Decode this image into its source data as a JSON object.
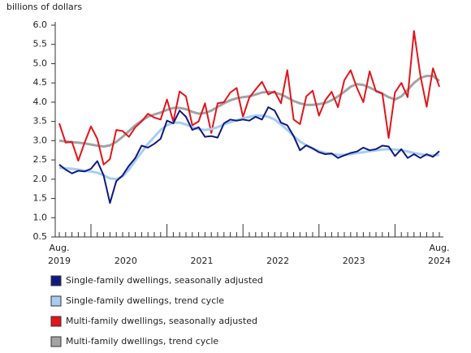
{
  "chart_data": {
    "type": "line",
    "y_label": "billions of dollars",
    "categories": [
      "Aug. 2019",
      null,
      null,
      null,
      null,
      null,
      null,
      null,
      null,
      null,
      null,
      null,
      null,
      null,
      null,
      null,
      null,
      null,
      null,
      null,
      null,
      null,
      null,
      null,
      null,
      null,
      null,
      null,
      null,
      null,
      null,
      null,
      null,
      null,
      null,
      null,
      null,
      null,
      null,
      null,
      null,
      null,
      null,
      null,
      null,
      null,
      null,
      null,
      null,
      null,
      null,
      null,
      null,
      null,
      null,
      null,
      null,
      null,
      null,
      null,
      "Aug. 2024"
    ],
    "year_labels": [
      "2020",
      "2021",
      "2022",
      "2023"
    ],
    "ylim": [
      0.5,
      6.0
    ],
    "yticks": [
      0.5,
      {
        "value": 1,
        "label": "1.0"
      },
      1.5,
      {
        "value": 2,
        "label": "2.0"
      },
      2.5,
      {
        "value": 3,
        "label": "3.0"
      },
      3.5,
      {
        "value": 4,
        "label": "4.0"
      },
      4.5,
      {
        "value": 5,
        "label": "5.0"
      },
      5.5,
      {
        "value": 6,
        "label": "6.0"
      }
    ],
    "grid": false,
    "series": [
      {
        "name": "Single-family dwellings, seasonally adjusted",
        "color": "#0f1a80",
        "values": [
          2.38,
          2.25,
          2.15,
          2.22,
          2.2,
          2.27,
          2.47,
          2.1,
          1.38,
          1.95,
          2.1,
          2.35,
          2.55,
          2.87,
          2.82,
          2.92,
          3.05,
          3.52,
          3.45,
          3.78,
          3.62,
          3.28,
          3.35,
          3.1,
          3.12,
          3.08,
          3.45,
          3.55,
          3.52,
          3.55,
          3.52,
          3.62,
          3.55,
          3.87,
          3.78,
          3.47,
          3.4,
          3.12,
          2.75,
          2.88,
          2.8,
          2.7,
          2.65,
          2.67,
          2.55,
          2.62,
          2.68,
          2.72,
          2.82,
          2.75,
          2.78,
          2.87,
          2.85,
          2.6,
          2.78,
          2.55,
          2.65,
          2.55,
          2.65,
          2.58,
          2.73
        ]
      },
      {
        "name": "Single-family dwellings, trend cycle",
        "color": "#a6cdf0",
        "values": [
          2.3,
          2.28,
          2.27,
          2.25,
          2.22,
          2.2,
          2.17,
          2.1,
          2.02,
          2.0,
          2.07,
          2.25,
          2.48,
          2.7,
          2.92,
          3.1,
          3.28,
          3.4,
          3.47,
          3.47,
          3.42,
          3.35,
          3.3,
          3.28,
          3.3,
          3.35,
          3.42,
          3.48,
          3.53,
          3.58,
          3.62,
          3.65,
          3.65,
          3.62,
          3.55,
          3.42,
          3.28,
          3.12,
          2.98,
          2.88,
          2.8,
          2.73,
          2.68,
          2.65,
          2.63,
          2.63,
          2.65,
          2.68,
          2.7,
          2.73,
          2.75,
          2.77,
          2.78,
          2.77,
          2.75,
          2.72,
          2.68,
          2.65,
          2.62,
          2.62,
          2.63
        ]
      },
      {
        "name": "Multi-family dwellings, seasonally adjusted",
        "color": "#e3141b",
        "values": [
          3.45,
          2.95,
          2.97,
          2.48,
          2.95,
          3.37,
          3.05,
          2.38,
          2.52,
          3.28,
          3.25,
          3.1,
          3.35,
          3.5,
          3.7,
          3.6,
          3.55,
          4.07,
          3.5,
          4.28,
          4.15,
          3.4,
          3.5,
          3.97,
          3.2,
          3.97,
          4.0,
          4.25,
          4.37,
          3.62,
          4.12,
          4.33,
          4.53,
          4.2,
          4.28,
          3.97,
          4.83,
          3.55,
          3.43,
          4.15,
          4.3,
          3.65,
          4.05,
          4.27,
          3.87,
          4.57,
          4.83,
          4.37,
          4.0,
          4.8,
          4.28,
          4.23,
          3.07,
          4.25,
          4.5,
          4.13,
          5.85,
          4.7,
          3.88,
          4.88,
          4.4
        ]
      },
      {
        "name": "Multi-family dwellings, trend cycle",
        "color": "#a3a3a3",
        "values": [
          3.0,
          2.98,
          2.96,
          2.95,
          2.93,
          2.9,
          2.87,
          2.85,
          2.88,
          2.97,
          3.1,
          3.25,
          3.4,
          3.52,
          3.62,
          3.68,
          3.73,
          3.8,
          3.85,
          3.85,
          3.82,
          3.75,
          3.7,
          3.72,
          3.78,
          3.88,
          3.97,
          4.05,
          4.1,
          4.13,
          4.15,
          4.2,
          4.25,
          4.27,
          4.25,
          4.2,
          4.12,
          4.03,
          3.97,
          3.93,
          3.93,
          3.95,
          3.98,
          4.05,
          4.15,
          4.27,
          4.4,
          4.47,
          4.45,
          4.38,
          4.3,
          4.22,
          4.13,
          4.07,
          4.15,
          4.32,
          4.5,
          4.63,
          4.68,
          4.68,
          4.55
        ]
      }
    ]
  }
}
